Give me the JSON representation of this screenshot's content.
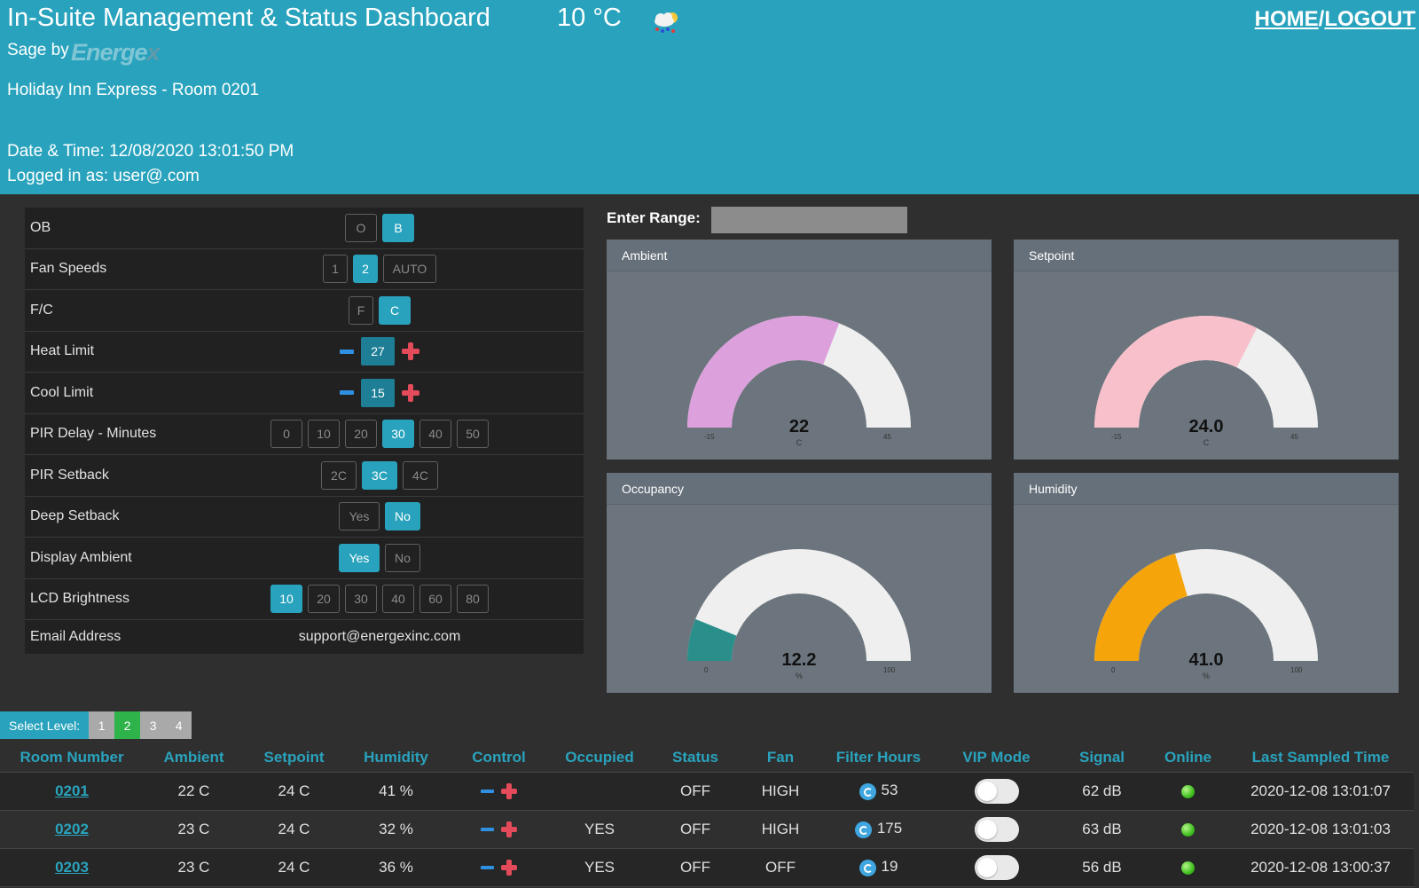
{
  "header": {
    "title": "In-Suite Management & Status Dashboard",
    "temperature": "10 °C",
    "weather_icon": "cloud-rain-sun-icon",
    "nav_home": "HOME",
    "nav_sep": "/",
    "nav_logout": "LOGOUT",
    "sage_by": "Sage by",
    "logo_text": "Energe",
    "logo_x": "x",
    "hotel_room": "Holiday Inn Express  - Room 0201",
    "datetime": "Date & Time: 12/08/2020 13:01:50 PM",
    "logged_in": "Logged in as: user@.com"
  },
  "settings": {
    "ob": {
      "label": "OB",
      "options": [
        "O",
        "B"
      ],
      "selected": "B"
    },
    "fan_speeds": {
      "label": "Fan Speeds",
      "options": [
        "1",
        "2",
        "AUTO"
      ],
      "selected": "2"
    },
    "fc": {
      "label": "F/C",
      "options": [
        "F",
        "C"
      ],
      "selected": "C"
    },
    "heat_limit": {
      "label": "Heat Limit",
      "value": "27"
    },
    "cool_limit": {
      "label": "Cool Limit",
      "value": "15"
    },
    "pir_delay": {
      "label": "PIR Delay - Minutes",
      "options": [
        "0",
        "10",
        "20",
        "30",
        "40",
        "50"
      ],
      "selected": "30"
    },
    "pir_setback": {
      "label": "PIR Setback",
      "options": [
        "2C",
        "3C",
        "4C"
      ],
      "selected": "3C"
    },
    "deep_setback": {
      "label": "Deep Setback",
      "options": [
        "Yes",
        "No"
      ],
      "selected": "No"
    },
    "display_ambient": {
      "label": "Display Ambient",
      "options": [
        "Yes",
        "No"
      ],
      "selected": "Yes"
    },
    "lcd_brightness": {
      "label": "LCD Brightness",
      "options": [
        "10",
        "20",
        "30",
        "40",
        "60",
        "80"
      ],
      "selected": "10"
    },
    "email": {
      "label": "Email Address",
      "value": "support@energexinc.com"
    }
  },
  "range": {
    "label": "Enter Range:",
    "value": ""
  },
  "gauges": {
    "ambient": {
      "title": "Ambient",
      "value": 22,
      "display": "22",
      "unit": "C",
      "min": -15,
      "max": 45,
      "min_label": "-15",
      "max_label": "45",
      "color": "#dca0dc"
    },
    "setpoint": {
      "title": "Setpoint",
      "value": 24.0,
      "display": "24.0",
      "unit": "C",
      "min": -15,
      "max": 45,
      "min_label": "-15",
      "max_label": "45",
      "color": "#f8c0ca"
    },
    "occupancy": {
      "title": "Occupancy",
      "value": 12.2,
      "display": "12.2",
      "unit": "%",
      "min": 0,
      "max": 100,
      "min_label": "0",
      "max_label": "100",
      "color": "#2a8f8a"
    },
    "humidity": {
      "title": "Humidity",
      "value": 41.0,
      "display": "41.0",
      "unit": "%",
      "min": 0,
      "max": 100,
      "min_label": "0",
      "max_label": "100",
      "color": "#f5a50a"
    }
  },
  "level": {
    "label": "Select Level:",
    "levels": [
      "1",
      "2",
      "3",
      "4"
    ],
    "selected": "2"
  },
  "table": {
    "headers": [
      "Room Number",
      "Ambient",
      "Setpoint",
      "Humidity",
      "Control",
      "Occupied",
      "Status",
      "Fan",
      "Filter Hours",
      "VIP Mode",
      "Signal",
      "Online",
      "Last Sampled Time"
    ],
    "rows": [
      {
        "room": "0201",
        "ambient": "22 C",
        "setpoint": "24 C",
        "humidity": "41 %",
        "occupied": "",
        "status": "OFF",
        "fan": "HIGH",
        "filter_hours": "53",
        "vip": "off",
        "signal": "62 dB",
        "online": "online",
        "last_sampled": "2020-12-08 13:01:07"
      },
      {
        "room": "0202",
        "ambient": "23 C",
        "setpoint": "24 C",
        "humidity": "32 %",
        "occupied": "YES",
        "status": "OFF",
        "fan": "HIGH",
        "filter_hours": "175",
        "vip": "off",
        "signal": "63 dB",
        "online": "online",
        "last_sampled": "2020-12-08 13:01:03"
      },
      {
        "room": "0203",
        "ambient": "23 C",
        "setpoint": "24 C",
        "humidity": "36 %",
        "occupied": "YES",
        "status": "OFF",
        "fan": "OFF",
        "filter_hours": "19",
        "vip": "off",
        "signal": "56 dB",
        "online": "online",
        "last_sampled": "2020-12-08 13:00:37"
      }
    ]
  }
}
